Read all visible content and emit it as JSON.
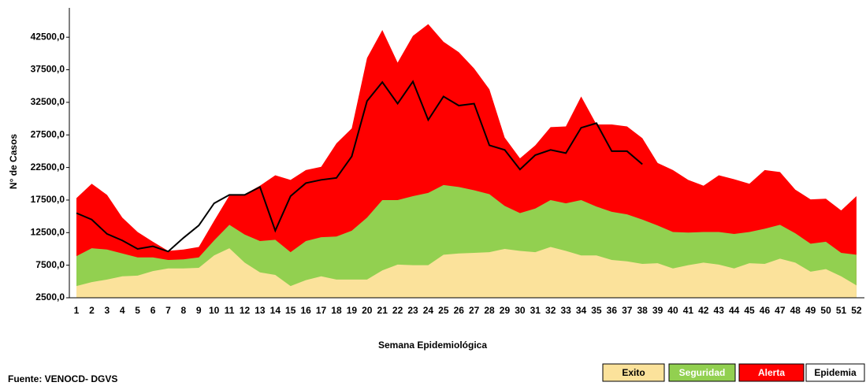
{
  "chart_data": {
    "type": "area",
    "y_label": "N° de Casos",
    "x_label": "Semana Epidemiológica",
    "source": "Fuente: VENOCD- DGVS",
    "categories": [
      1,
      2,
      3,
      4,
      5,
      6,
      7,
      8,
      9,
      10,
      11,
      12,
      13,
      14,
      15,
      16,
      17,
      18,
      19,
      20,
      21,
      22,
      23,
      24,
      25,
      26,
      27,
      28,
      29,
      30,
      31,
      32,
      33,
      34,
      35,
      36,
      37,
      38,
      39,
      40,
      41,
      42,
      43,
      44,
      45,
      46,
      47,
      48,
      49,
      50,
      51,
      52
    ],
    "ylim": [
      2500,
      47000
    ],
    "yticks": [
      {
        "value": 2500,
        "label": "2500,0"
      },
      {
        "value": 7500,
        "label": "7500,0"
      },
      {
        "value": 12500,
        "label": "12500,0"
      },
      {
        "value": 17500,
        "label": "17500,0"
      },
      {
        "value": 22500,
        "label": "22500,0"
      },
      {
        "value": 27500,
        "label": "27500,0"
      },
      {
        "value": 32500,
        "label": "32500,0"
      },
      {
        "value": 37500,
        "label": "37500,0"
      },
      {
        "value": 42500,
        "label": "42500,0"
      }
    ],
    "series": [
      {
        "name": "Alerta",
        "color": "#ff0000",
        "style": "area",
        "legend_text": "#ffffff",
        "values": [
          17800,
          20000,
          18300,
          14800,
          12600,
          11100,
          9700,
          9900,
          10300,
          14300,
          18200,
          18400,
          19700,
          21300,
          20600,
          22100,
          22600,
          26200,
          28500,
          39300,
          43600,
          38600,
          42700,
          44500,
          41800,
          40200,
          37700,
          34500,
          27100,
          23900,
          25900,
          28700,
          28800,
          33400,
          29100,
          29100,
          28800,
          27000,
          23200,
          22100,
          20600,
          19700,
          21300,
          20700,
          20000,
          22100,
          21800,
          19100,
          17600,
          17700,
          15900,
          18100
        ]
      },
      {
        "name": "Seguridad",
        "color": "#92d050",
        "style": "area",
        "legend_text": "#ffffff",
        "values": [
          8900,
          10100,
          9900,
          9300,
          8700,
          8700,
          8300,
          8400,
          8700,
          11300,
          13700,
          12200,
          11200,
          11400,
          9500,
          11200,
          11800,
          11900,
          12800,
          14800,
          17500,
          17500,
          18100,
          18600,
          19800,
          19500,
          19000,
          18400,
          16600,
          15500,
          16200,
          17500,
          17000,
          17500,
          16500,
          15700,
          15300,
          14500,
          13600,
          12600,
          12500,
          12600,
          12600,
          12300,
          12600,
          13100,
          13700,
          12400,
          10800,
          11100,
          9400,
          9100
        ]
      },
      {
        "name": "Exito",
        "color": "#fbe29b",
        "style": "area",
        "legend_text": "#000000",
        "values": [
          4300,
          4900,
          5300,
          5800,
          5900,
          6600,
          7000,
          7000,
          7100,
          9000,
          10100,
          7900,
          6400,
          6000,
          4300,
          5200,
          5800,
          5300,
          5300,
          5300,
          6700,
          7600,
          7500,
          7500,
          9100,
          9300,
          9400,
          9500,
          10000,
          9700,
          9500,
          10300,
          9700,
          9000,
          9000,
          8300,
          8100,
          7700,
          7800,
          7000,
          7500,
          7900,
          7600,
          7000,
          7800,
          7700,
          8500,
          7900,
          6500,
          6900,
          5800,
          4400
        ]
      },
      {
        "name": "Epidemia",
        "color": "#000000",
        "style": "line",
        "legend_text": "#000000",
        "values": [
          15500,
          14500,
          12300,
          11300,
          10000,
          10400,
          9600,
          11700,
          13600,
          17000,
          18300,
          18300,
          19500,
          12800,
          18100,
          20100,
          20600,
          20900,
          24200,
          32700,
          35600,
          32300,
          35700,
          29800,
          33400,
          32000,
          32300,
          25900,
          25200,
          22200,
          24400,
          25200,
          24700,
          28600,
          29300,
          25000,
          25000,
          23000,
          null,
          null,
          null,
          null,
          null,
          null,
          null,
          null,
          null,
          null,
          null,
          null,
          null,
          null
        ]
      }
    ],
    "legend_order": [
      2,
      1,
      0,
      3
    ]
  }
}
